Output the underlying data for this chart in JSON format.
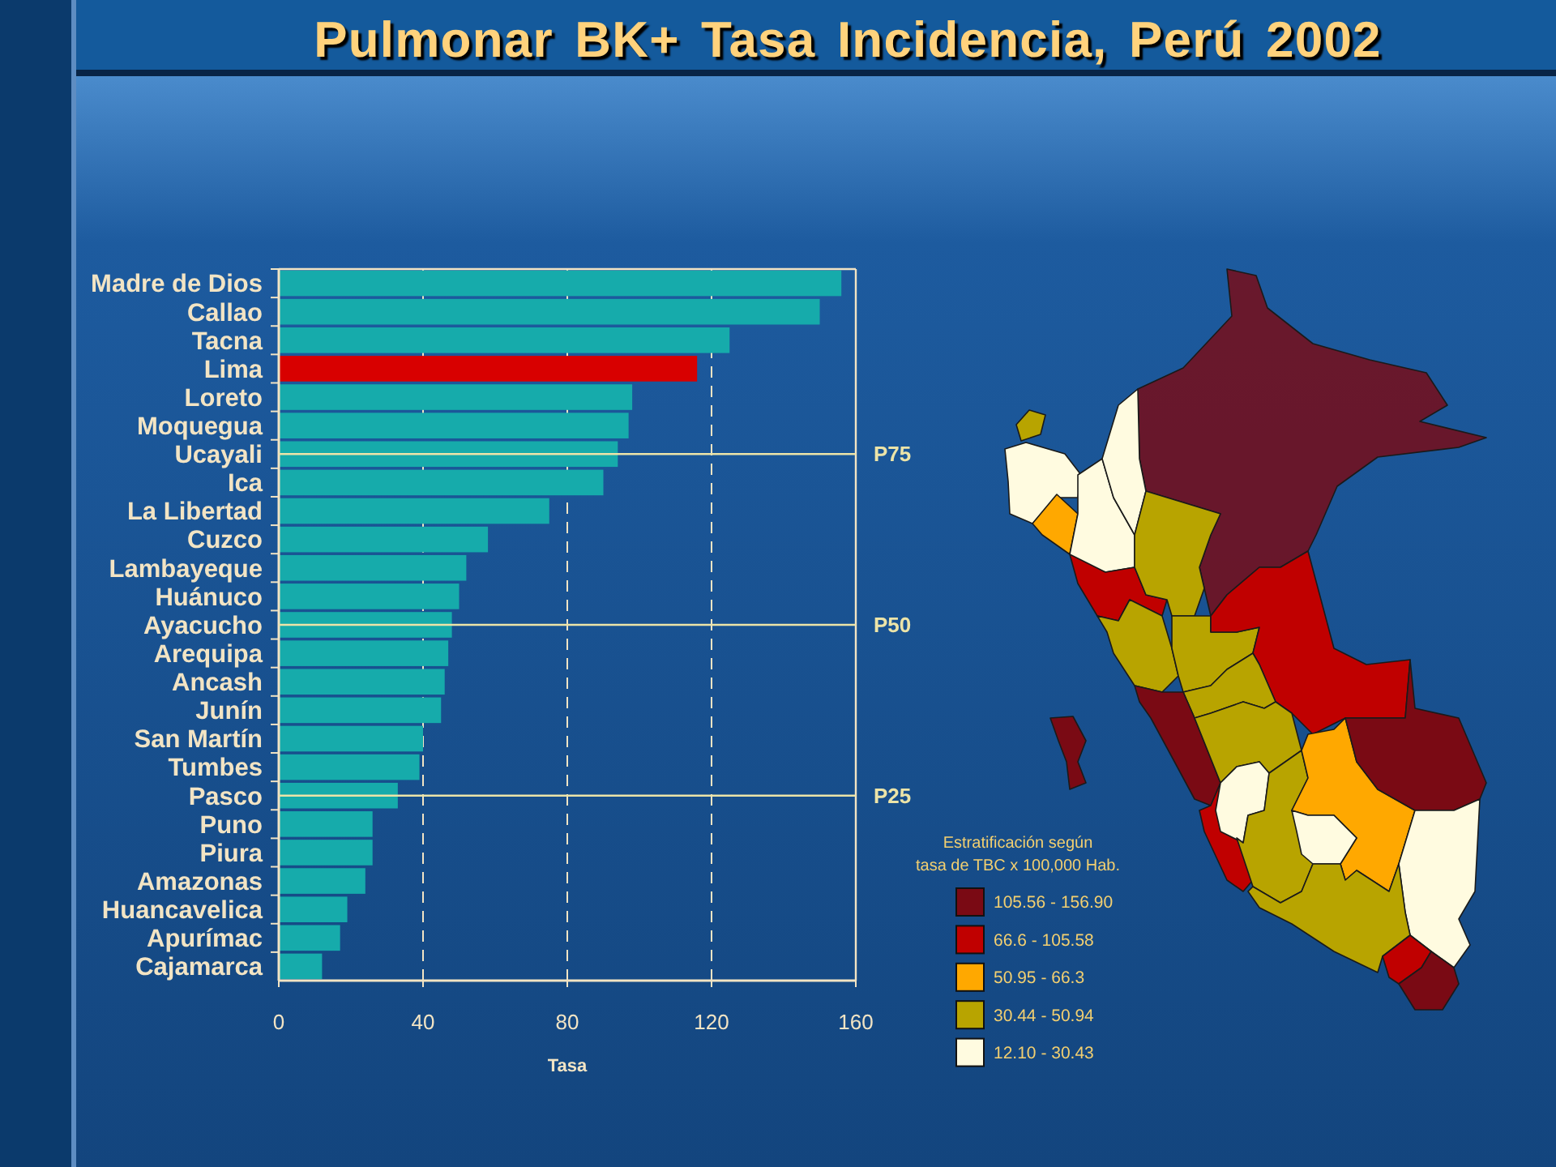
{
  "chart_data": [
    {
      "type": "bar",
      "orientation": "horizontal",
      "title": "Pulmonar BK+ Tasa Incidencia, Perú 2002",
      "categories": [
        "Madre de Dios",
        "Callao",
        "Tacna",
        "Lima",
        "Loreto",
        "Moquegua",
        "Ucayali",
        "Ica",
        "La Libertad",
        "Cuzco",
        "Lambayeque",
        "Huánuco",
        "Ayacucho",
        "Arequipa",
        "Ancash",
        "Junín",
        "San Martín",
        "Tumbes",
        "Pasco",
        "Puno",
        "Piura",
        "Amazonas",
        "Huancavelica",
        "Apurímac",
        "Cajamarca"
      ],
      "values": [
        156,
        150,
        125,
        116,
        98,
        97,
        94,
        90,
        75,
        58,
        52,
        50,
        48,
        47,
        46,
        45,
        40,
        39,
        33,
        26,
        26,
        24,
        19,
        17,
        12
      ],
      "colors": [
        "#16abab",
        "#16abab",
        "#16abab",
        "#d80000",
        "#16abab",
        "#16abab",
        "#16abab",
        "#16abab",
        "#16abab",
        "#16abab",
        "#16abab",
        "#16abab",
        "#16abab",
        "#16abab",
        "#16abab",
        "#16abab",
        "#16abab",
        "#16abab",
        "#16abab",
        "#16abab",
        "#16abab",
        "#16abab",
        "#16abab",
        "#16abab",
        "#16abab"
      ],
      "xlim": [
        0,
        160
      ],
      "xticks": [
        0,
        40,
        80,
        120,
        160
      ],
      "xlabel": "Tasa",
      "grid": "x",
      "ref_lines": [
        {
          "axis": "y",
          "value": "Ucayali",
          "label": "P75",
          "color": "#ece4a8"
        },
        {
          "axis": "y",
          "value": "Ayacucho",
          "label": "P50",
          "color": "#ece4a8"
        },
        {
          "axis": "y",
          "value": "Pasco",
          "label": "P25",
          "color": "#ece4a8"
        }
      ]
    },
    {
      "type": "other",
      "legend_title": "Estratificación según tasa de TBC x 100,000 Hab.",
      "categories": [
        "105.56 - 156.90",
        "66.6 - 105.58",
        "50.95 - 66.3",
        "30.44 - 50.94",
        "12.10 - 30.43"
      ],
      "colors": [
        "#7a0a14",
        "#c00000",
        "#ffa800",
        "#b8a400",
        "#fffbe0"
      ]
    }
  ]
}
